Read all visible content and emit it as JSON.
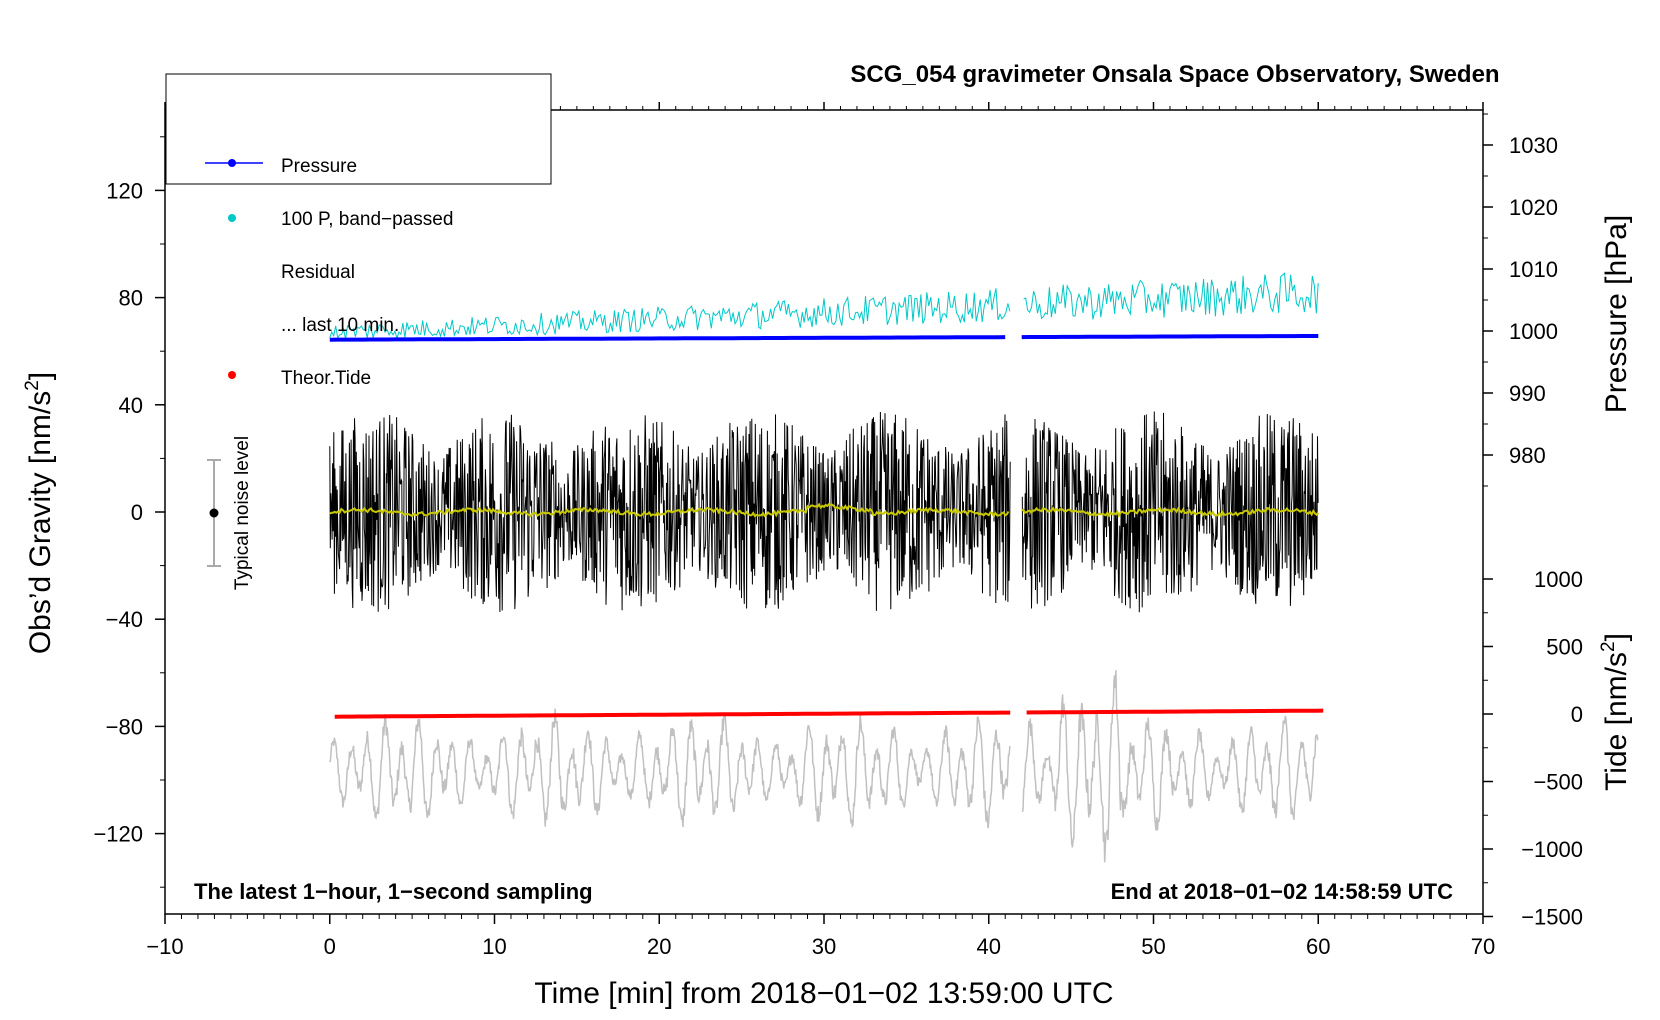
{
  "chart_data": {
    "type": "line",
    "title": "SCG_054 gravimeter Onsala Space Observatory, Sweden",
    "xlabel": "Time [min] from 2018−01−02 13:59:00 UTC",
    "ylabel_left": "Obs’d Gravity [nm/s",
    "ylabel_left_sup": "2",
    "ylabel_left_end": "]",
    "ylabel_right_top": "Pressure [hPa]",
    "ylabel_right_bottom": "Tide [nm/s",
    "ylabel_right_bottom_sup": "2",
    "ylabel_right_bottom_end": "]",
    "xlim": [
      -10,
      70
    ],
    "ylim_left": [
      -150,
      150
    ],
    "pressure_range_hPa": [
      975,
      1035
    ],
    "tide_range_nms2": [
      -1500,
      1000
    ],
    "x_ticks": [
      -10,
      0,
      10,
      20,
      30,
      40,
      50,
      60,
      70
    ],
    "x_tick_labels": [
      "−10",
      "0",
      "10",
      "20",
      "30",
      "40",
      "50",
      "60",
      "70"
    ],
    "y_left_ticks": [
      120,
      80,
      40,
      0,
      -40,
      -80,
      -120
    ],
    "y_left_tick_labels": [
      "120",
      "80",
      "40",
      "0",
      "−40",
      "−80",
      "−120"
    ],
    "pressure_ticks": [
      1030,
      1020,
      1010,
      1000,
      990,
      980
    ],
    "pressure_tick_labels": [
      "1030",
      "1020",
      "1010",
      "1000",
      "990",
      "980"
    ],
    "tide_ticks": [
      1000,
      500,
      0,
      -500,
      -1000,
      -1500
    ],
    "tide_tick_labels": [
      "1000",
      "500",
      "0",
      "−500",
      "−1000",
      "−1500"
    ],
    "gap_minutes": [
      41.3,
      42.0
    ],
    "legend": [
      "Pressure",
      "100 P, band−passed",
      "Residual",
      "... last 10 min.",
      "Theor.Tide"
    ],
    "noise_label": "Typical noise level",
    "noise_level_nms2": 20,
    "note_left": "The latest 1−hour, 1−second sampling",
    "note_right": "End at 2018−01−02 14:58:59 UTC",
    "series": [
      {
        "name": "Pressure",
        "color": "#0000ff",
        "start_hPa": 998.6,
        "end_hPa": 999.2,
        "x_range": [
          0,
          60
        ]
      },
      {
        "name": "100 P, band−passed",
        "color": "#00c8c8",
        "start_nms2": 67,
        "end_nms2": 82,
        "x_range": [
          0,
          60
        ]
      },
      {
        "name": "Residual",
        "color": "#000000",
        "center_nms2": 0,
        "amplitude_nms2": 45,
        "x_range": [
          0,
          60
        ]
      },
      {
        "name": "... last 10 min.",
        "color": "#c8c800",
        "center_nms2": 0,
        "x_range": [
          0,
          60
        ]
      },
      {
        "name": "Theor.Tide",
        "color": "#ff0000",
        "start_nms2": -20,
        "end_nms2": 25,
        "x_range": [
          0.3,
          60.5
        ]
      },
      {
        "name": "Observed Gravity",
        "color": "#c0c0c0",
        "center_tide_units": -420,
        "amplitude_tide_units": 400,
        "x_range": [
          0,
          60
        ]
      }
    ]
  }
}
